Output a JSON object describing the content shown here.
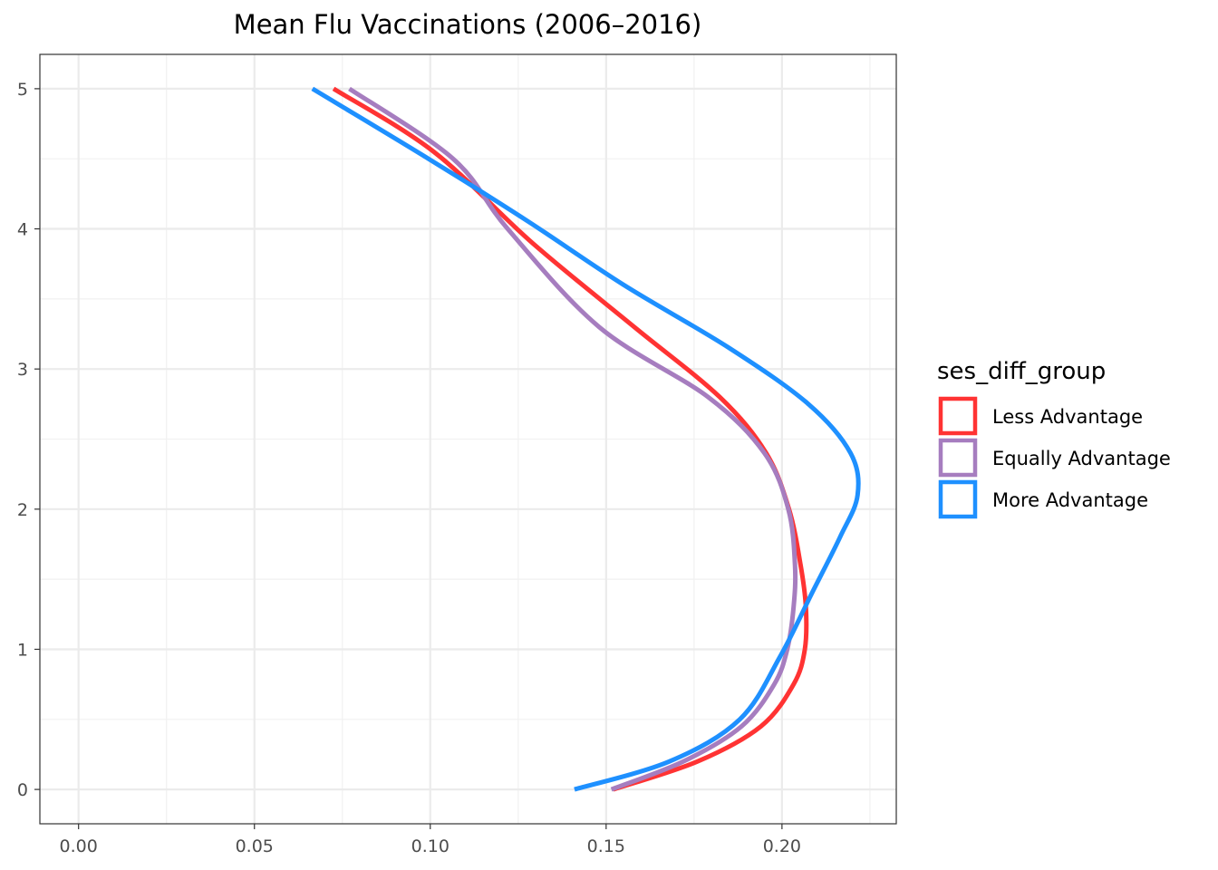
{
  "chart_data": {
    "type": "line",
    "title": "Mean Flu Vaccinations (2006–2016)",
    "xlabel": "",
    "ylabel": "",
    "xlim": [
      -0.011,
      0.2325
    ],
    "ylim": [
      -0.245,
      5.245
    ],
    "x_ticks": [
      0.0,
      0.05,
      0.1,
      0.15,
      0.2
    ],
    "x_tick_labels": [
      "0.00",
      "0.05",
      "0.10",
      "0.15",
      "0.20"
    ],
    "y_ticks": [
      0,
      1,
      2,
      3,
      4,
      5
    ],
    "y_tick_labels": [
      "0",
      "1",
      "2",
      "3",
      "4",
      "5"
    ],
    "grid": true,
    "legend": {
      "title": "ses_diff_group",
      "position": "right"
    },
    "series": [
      {
        "name": "Less Advantage",
        "color": "#ff3333",
        "points": [
          {
            "x": 0.152,
            "y": 0.0
          },
          {
            "x": 0.176,
            "y": 0.2
          },
          {
            "x": 0.194,
            "y": 0.45
          },
          {
            "x": 0.2033,
            "y": 0.75
          },
          {
            "x": 0.2065,
            "y": 1.0
          },
          {
            "x": 0.2068,
            "y": 1.3
          },
          {
            "x": 0.2053,
            "y": 1.6
          },
          {
            "x": 0.202,
            "y": 2.0
          },
          {
            "x": 0.1955,
            "y": 2.4
          },
          {
            "x": 0.1823,
            "y": 2.8
          },
          {
            "x": 0.158,
            "y": 3.3
          },
          {
            "x": 0.129,
            "y": 3.9
          },
          {
            "x": 0.101,
            "y": 4.55
          },
          {
            "x": 0.0725,
            "y": 5.0
          }
        ]
      },
      {
        "name": "Equally Advantage",
        "color": "#a67dbf",
        "points": [
          {
            "x": 0.1515,
            "y": 0.0
          },
          {
            "x": 0.172,
            "y": 0.2
          },
          {
            "x": 0.1885,
            "y": 0.45
          },
          {
            "x": 0.1978,
            "y": 0.75
          },
          {
            "x": 0.2015,
            "y": 1.0
          },
          {
            "x": 0.2033,
            "y": 1.3
          },
          {
            "x": 0.2037,
            "y": 1.6
          },
          {
            "x": 0.2018,
            "y": 2.0
          },
          {
            "x": 0.195,
            "y": 2.4
          },
          {
            "x": 0.179,
            "y": 2.8
          },
          {
            "x": 0.148,
            "y": 3.3
          },
          {
            "x": 0.122,
            "y": 4.0
          },
          {
            "x": 0.1065,
            "y": 4.5
          },
          {
            "x": 0.077,
            "y": 5.0
          }
        ]
      },
      {
        "name": "More Advantage",
        "color": "#1e90ff",
        "points": [
          {
            "x": 0.141,
            "y": 0.0
          },
          {
            "x": 0.168,
            "y": 0.2
          },
          {
            "x": 0.188,
            "y": 0.5
          },
          {
            "x": 0.1995,
            "y": 0.95
          },
          {
            "x": 0.2085,
            "y": 1.4
          },
          {
            "x": 0.2165,
            "y": 1.8
          },
          {
            "x": 0.2215,
            "y": 2.1
          },
          {
            "x": 0.2195,
            "y": 2.4
          },
          {
            "x": 0.2075,
            "y": 2.75
          },
          {
            "x": 0.185,
            "y": 3.15
          },
          {
            "x": 0.155,
            "y": 3.6
          },
          {
            "x": 0.128,
            "y": 4.05
          },
          {
            "x": 0.0995,
            "y": 4.5
          },
          {
            "x": 0.0665,
            "y": 5.0
          }
        ]
      }
    ]
  }
}
